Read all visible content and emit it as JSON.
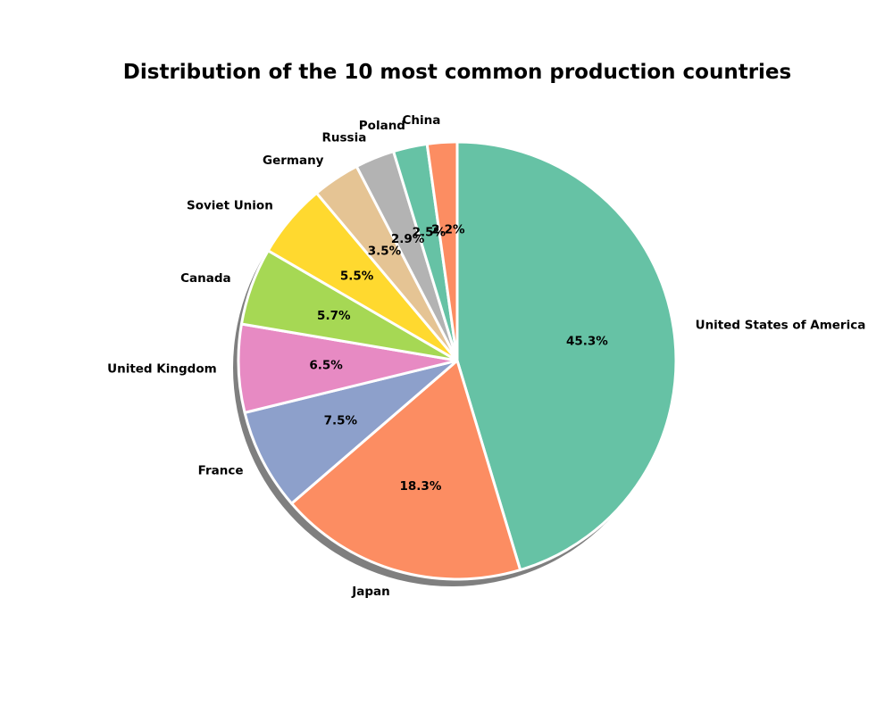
{
  "chart_data": {
    "type": "pie",
    "title": "Distribution of the 10 most common production countries",
    "start_angle_deg": 90,
    "direction": "clockwise",
    "shadow": true,
    "slice_edge_color": "#ffffff",
    "slices": [
      {
        "label": "United States of America",
        "value": 45.3,
        "pct_label": "45.3%",
        "color": "#66c2a5"
      },
      {
        "label": "Japan",
        "value": 18.3,
        "pct_label": "18.3%",
        "color": "#fc8d62"
      },
      {
        "label": "France",
        "value": 7.5,
        "pct_label": "7.5%",
        "color": "#8da0cb"
      },
      {
        "label": "United Kingdom",
        "value": 6.5,
        "pct_label": "6.5%",
        "color": "#e78ac3"
      },
      {
        "label": "Canada",
        "value": 5.7,
        "pct_label": "5.7%",
        "color": "#a6d854"
      },
      {
        "label": "Soviet Union",
        "value": 5.5,
        "pct_label": "5.5%",
        "color": "#ffd92f"
      },
      {
        "label": "Germany",
        "value": 3.5,
        "pct_label": "3.5%",
        "color": "#e5c494"
      },
      {
        "label": "Russia",
        "value": 2.9,
        "pct_label": "2.9%",
        "color": "#b3b3b3"
      },
      {
        "label": "Poland",
        "value": 2.5,
        "pct_label": "2.5%",
        "color": "#66c2a5"
      },
      {
        "label": "China",
        "value": 2.2,
        "pct_label": "2.2%",
        "color": "#fc8d62"
      }
    ]
  }
}
